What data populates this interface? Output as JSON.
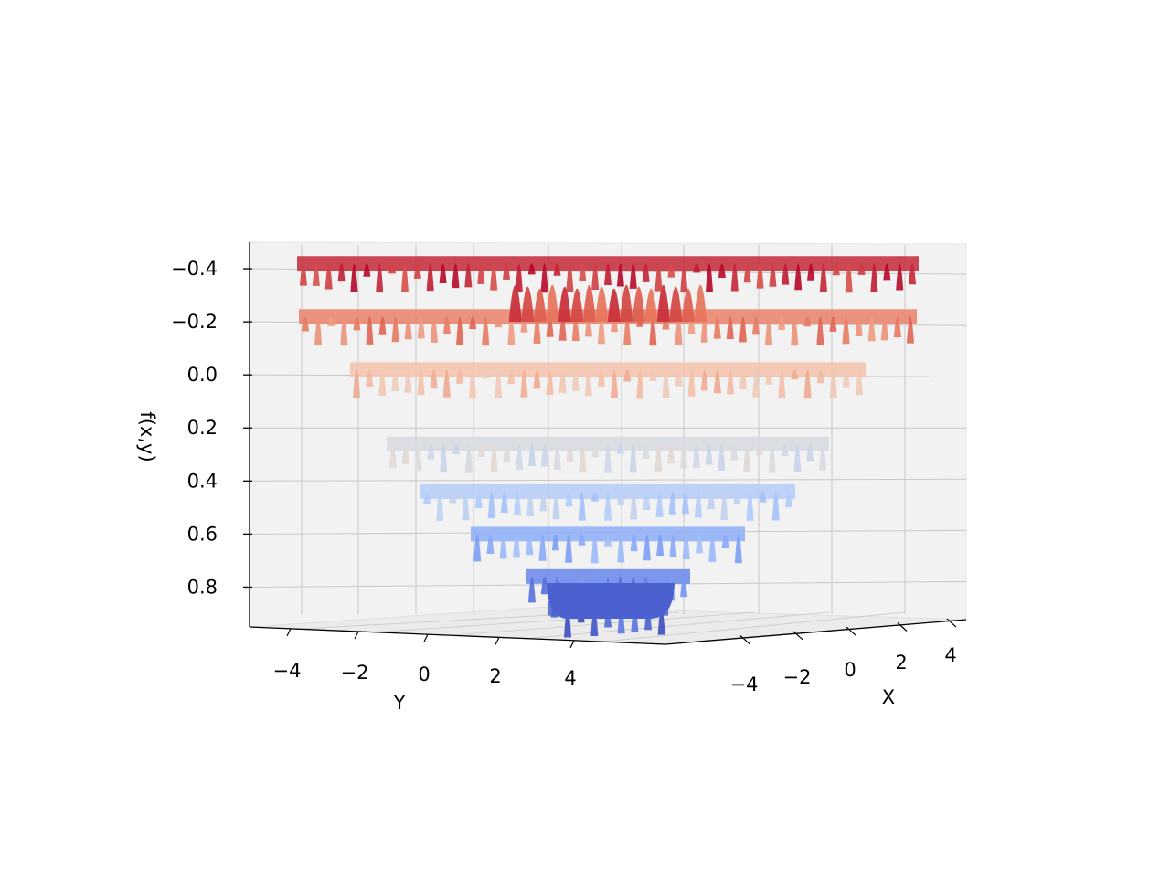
{
  "chart_data": {
    "type": "surface",
    "title": "",
    "xlabel": "X",
    "ylabel": "Y",
    "zlabel": "f(x,y)",
    "x_ticks": [
      "−4",
      "−2",
      "0",
      "2",
      "4"
    ],
    "y_ticks": [
      "−4",
      "−2",
      "0",
      "2",
      "4"
    ],
    "z_ticks": [
      "−0.4",
      "−0.2",
      "0.0",
      "0.2",
      "0.4",
      "0.6",
      "0.8"
    ],
    "xlim": [
      -5,
      5
    ],
    "ylim": [
      -5,
      5
    ],
    "zlim": [
      -0.5,
      0.95
    ],
    "z_axis_inverted": true,
    "grid": true,
    "colormap": "coolwarm",
    "colormap_stops": [
      "#3b4cc0",
      "#7396f5",
      "#b0cbfc",
      "#dddcdc",
      "#f5c4ac",
      "#e7745b",
      "#b40426"
    ],
    "series": [
      {
        "ring_radius": [
          0.0,
          0.75,
          1.5,
          2.25,
          3.0,
          3.75,
          4.5,
          5.0
        ],
        "z_value": [
          0.88,
          0.76,
          0.6,
          0.44,
          0.26,
          -0.02,
          -0.22,
          -0.42
        ]
      }
    ]
  }
}
